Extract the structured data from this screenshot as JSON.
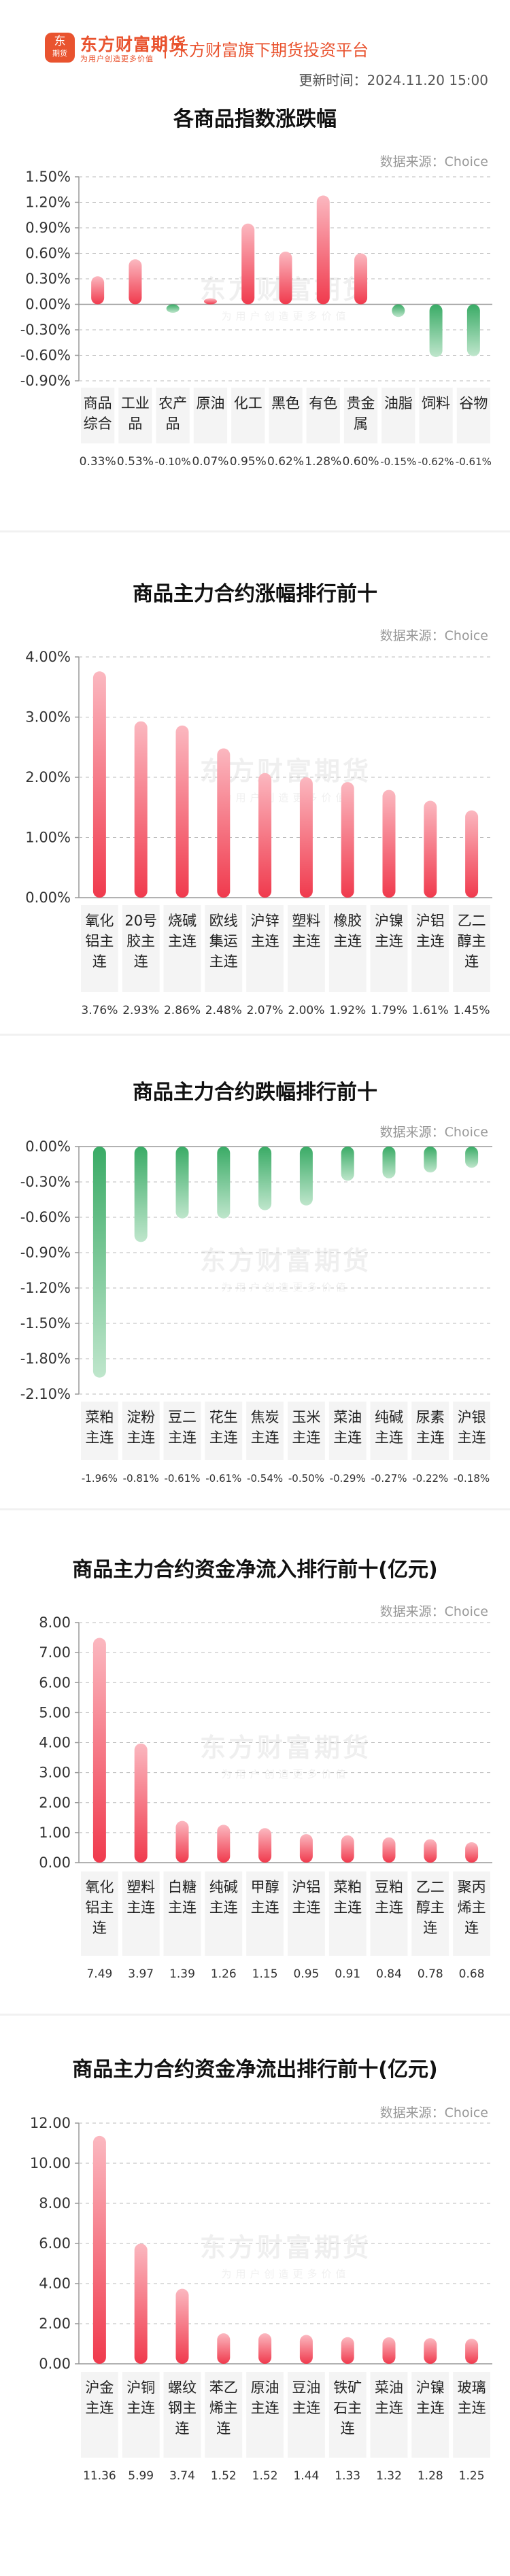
{
  "header": {
    "logo_glyph": "东",
    "logo_sub": "期货",
    "brand": "东方财富期货",
    "slogan": "为用户创造更多价值",
    "platform": "东方财富旗下期货投资平台",
    "update_time": "更新时间：2024.11.20 15:00"
  },
  "source_label": "数据来源：Choice",
  "watermark": {
    "main": "东方财富期货",
    "sub": "为用户创造更多价值"
  },
  "colors": {
    "up": "#f03a4d",
    "up_light": "#fbb8c0",
    "down": "#3aab66",
    "down_light": "#bfe6cc",
    "brand": "#e9532f",
    "label_bg": "#f4f4f4"
  },
  "chart_data": [
    {
      "id": "index",
      "type": "bar",
      "title": "各商品指数涨跌幅",
      "categories": [
        "商品\n综合",
        "工业\n品",
        "农产\n品",
        "原油",
        "化工",
        "黑色",
        "有色",
        "贵金\n属",
        "油脂",
        "饲料",
        "谷物"
      ],
      "values": [
        0.33,
        0.53,
        -0.1,
        0.07,
        0.95,
        0.62,
        1.28,
        0.6,
        -0.15,
        -0.62,
        -0.61
      ],
      "value_labels": [
        "0.33%",
        "0.53%",
        "-0.10%",
        "0.07%",
        "0.95%",
        "0.62%",
        "1.28%",
        "0.60%",
        "-0.15%",
        "-0.62%",
        "-0.61%"
      ],
      "yticks": [
        "1.50%",
        "1.20%",
        "0.90%",
        "0.60%",
        "0.30%",
        "0.00%",
        "-0.30%",
        "-0.60%",
        "-0.90%"
      ],
      "ylim": [
        -0.9,
        1.5
      ]
    },
    {
      "id": "gain",
      "type": "bar",
      "title": "商品主力合约涨幅排行前十",
      "categories": [
        "氧化\n铝主\n连",
        "20号\n胶主\n连",
        "烧碱\n主连",
        "欧线\n集运\n主连",
        "沪锌\n主连",
        "塑料\n主连",
        "橡胶\n主连",
        "沪镍\n主连",
        "沪铝\n主连",
        "乙二\n醇主\n连"
      ],
      "values": [
        3.76,
        2.93,
        2.86,
        2.48,
        2.07,
        2.0,
        1.92,
        1.79,
        1.61,
        1.45
      ],
      "value_labels": [
        "3.76%",
        "2.93%",
        "2.86%",
        "2.48%",
        "2.07%",
        "2.00%",
        "1.92%",
        "1.79%",
        "1.61%",
        "1.45%"
      ],
      "yticks": [
        "4.00%",
        "3.00%",
        "2.00%",
        "1.00%",
        "0.00%"
      ],
      "ylim": [
        0,
        4
      ]
    },
    {
      "id": "loss",
      "type": "bar",
      "title": "商品主力合约跌幅排行前十",
      "categories": [
        "菜粕\n主连",
        "淀粉\n主连",
        "豆二\n主连",
        "花生\n主连",
        "焦炭\n主连",
        "玉米\n主连",
        "菜油\n主连",
        "纯碱\n主连",
        "尿素\n主连",
        "沪银\n主连"
      ],
      "values": [
        -1.96,
        -0.81,
        -0.61,
        -0.61,
        -0.54,
        -0.5,
        -0.29,
        -0.27,
        -0.22,
        -0.18
      ],
      "value_labels": [
        "-1.96%",
        "-0.81%",
        "-0.61%",
        "-0.61%",
        "-0.54%",
        "-0.50%",
        "-0.29%",
        "-0.27%",
        "-0.22%",
        "-0.18%"
      ],
      "yticks": [
        "0.00%",
        "-0.30%",
        "-0.60%",
        "-0.90%",
        "-1.20%",
        "-1.50%",
        "-1.80%",
        "-2.10%"
      ],
      "ylim": [
        -2.1,
        0
      ]
    },
    {
      "id": "inflow",
      "type": "bar",
      "title": "商品主力合约资金净流入排行前十(亿元)",
      "categories": [
        "氧化\n铝主\n连",
        "塑料\n主连",
        "白糖\n主连",
        "纯碱\n主连",
        "甲醇\n主连",
        "沪铝\n主连",
        "菜粕\n主连",
        "豆粕\n主连",
        "乙二\n醇主\n连",
        "聚丙\n烯主\n连"
      ],
      "values": [
        7.49,
        3.97,
        1.39,
        1.26,
        1.15,
        0.95,
        0.91,
        0.84,
        0.78,
        0.68
      ],
      "value_labels": [
        "7.49",
        "3.97",
        "1.39",
        "1.26",
        "1.15",
        "0.95",
        "0.91",
        "0.84",
        "0.78",
        "0.68"
      ],
      "yticks": [
        "8.00",
        "7.00",
        "6.00",
        "5.00",
        "4.00",
        "3.00",
        "2.00",
        "1.00",
        "0.00"
      ],
      "ylim": [
        0,
        8
      ]
    },
    {
      "id": "outflow",
      "type": "bar",
      "title": "商品主力合约资金净流出排行前十(亿元)",
      "categories": [
        "沪金\n主连",
        "沪铜\n主连",
        "螺纹\n钢主\n连",
        "苯乙\n烯主\n连",
        "原油\n主连",
        "豆油\n主连",
        "铁矿\n石主\n连",
        "菜油\n主连",
        "沪镍\n主连",
        "玻璃\n主连"
      ],
      "values": [
        11.36,
        5.99,
        3.74,
        1.52,
        1.52,
        1.44,
        1.33,
        1.32,
        1.28,
        1.25
      ],
      "value_labels": [
        "11.36",
        "5.99",
        "3.74",
        "1.52",
        "1.52",
        "1.44",
        "1.33",
        "1.32",
        "1.28",
        "1.25"
      ],
      "yticks": [
        "12.00",
        "10.00",
        "8.00",
        "6.00",
        "4.00",
        "2.00",
        "0.00"
      ],
      "ylim": [
        0,
        12
      ]
    }
  ]
}
